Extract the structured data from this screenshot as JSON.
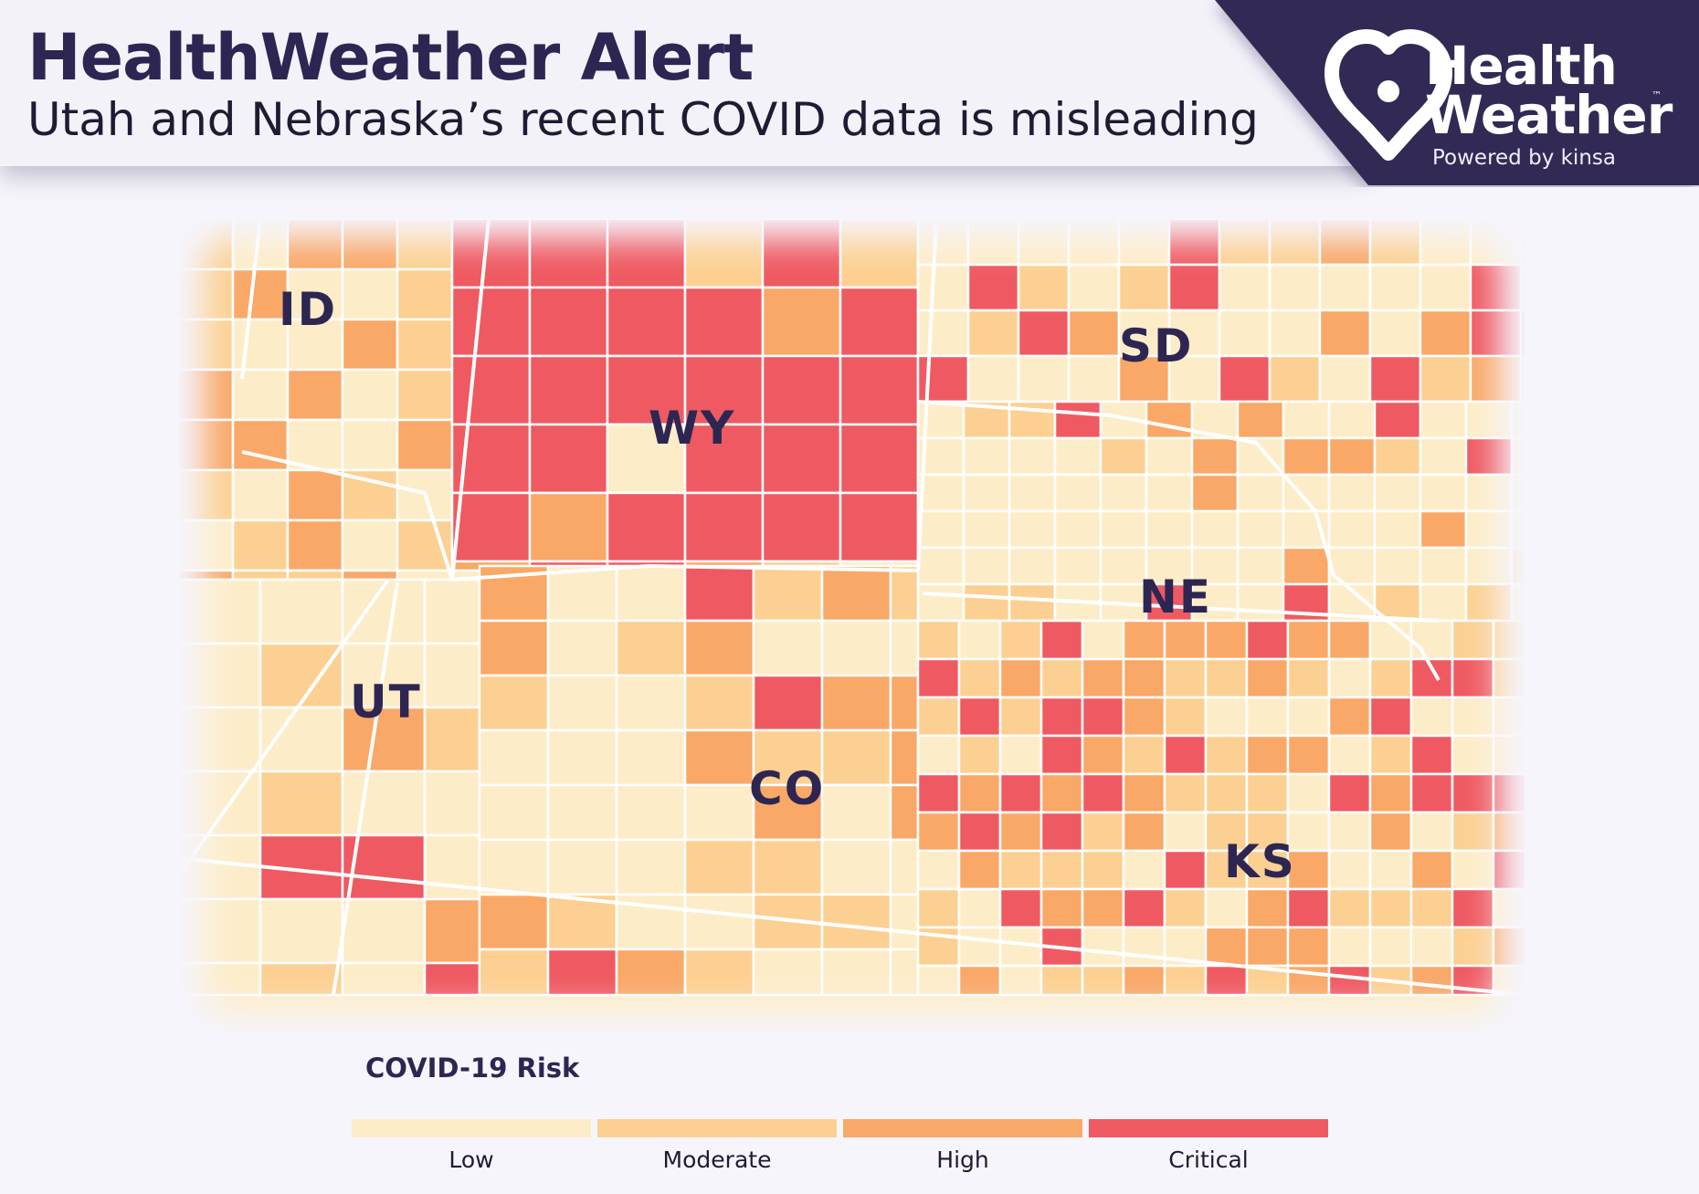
{
  "header": {
    "title": "HealthWeather Alert",
    "subtitle": "Utah and Nebraska’s recent COVID data is misleading"
  },
  "brand": {
    "name_line1": "Health",
    "name_line2": "Weather",
    "trademark": "™",
    "powered_by": "Powered by kinsa",
    "logo_icon": "heart-location-icon",
    "background_color": "#302a55"
  },
  "map": {
    "states": [
      {
        "abbr": "ID"
      },
      {
        "abbr": "WY"
      },
      {
        "abbr": "SD"
      },
      {
        "abbr": "NE"
      },
      {
        "abbr": "UT"
      },
      {
        "abbr": "CO"
      },
      {
        "abbr": "KS"
      }
    ]
  },
  "legend": {
    "title": "COVID-19 Risk",
    "items": [
      {
        "label": "Low",
        "color": "#fdecc8"
      },
      {
        "label": "Moderate",
        "color": "#fcd092"
      },
      {
        "label": "High",
        "color": "#f9a868"
      },
      {
        "label": "Critical",
        "color": "#ef5a62"
      }
    ]
  }
}
